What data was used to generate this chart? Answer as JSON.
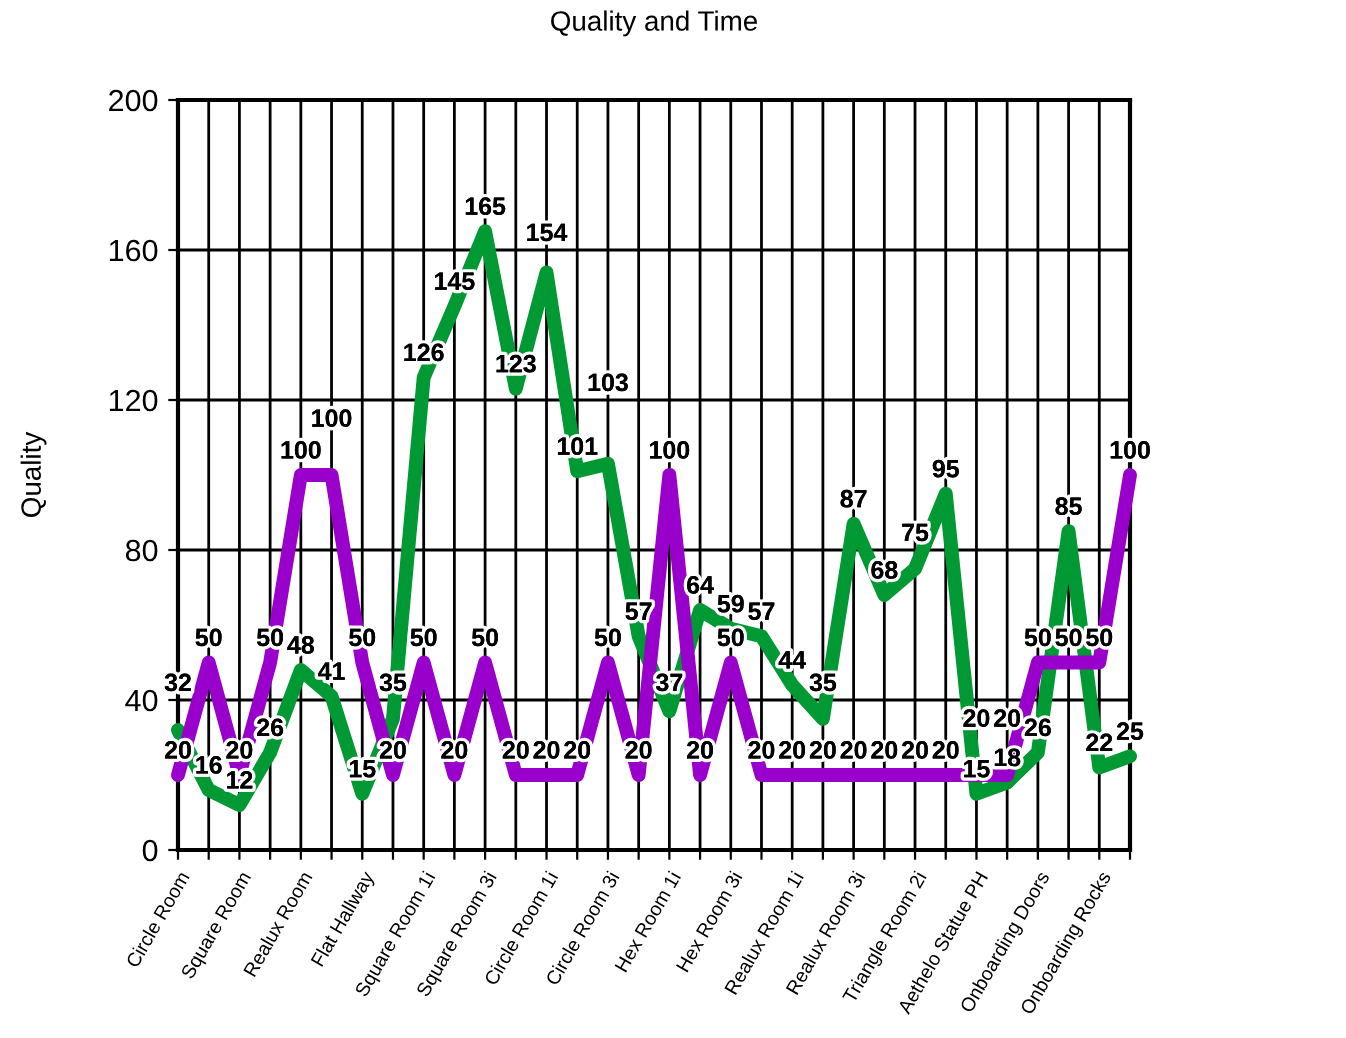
{
  "chart_data": {
    "type": "line",
    "title": "Quality and Time",
    "ylabel": "Quality",
    "categories": [
      "Circle Room",
      null,
      "Square Room",
      null,
      "Realux Room",
      null,
      "Flat Hallway",
      null,
      "Square Room 1i",
      null,
      "Square Room 3i",
      null,
      "Circle Room 1i",
      null,
      "Circle Room 3i",
      null,
      "Hex Room 1i",
      null,
      "Hex Room 3i",
      null,
      "Realux Room 1i",
      null,
      "Realux Room 3i",
      null,
      "Triangle Room 2i",
      null,
      "Aethelo Statue PH",
      null,
      "Onboarding Doors",
      null,
      "Onboarding Rocks",
      null
    ],
    "series": [
      {
        "color": "#009933",
        "values": [
          32,
          16,
          12,
          26,
          48,
          41,
          15,
          35,
          126,
          145,
          165,
          123,
          154,
          101,
          103,
          57,
          37,
          64,
          59,
          57,
          44,
          35,
          87,
          68,
          75,
          95,
          15,
          18,
          26,
          85,
          22,
          25
        ]
      },
      {
        "color": "#9900cc",
        "values": [
          20,
          50,
          20,
          50,
          100,
          100,
          50,
          20,
          50,
          20,
          50,
          20,
          20,
          20,
          50,
          20,
          100,
          20,
          50,
          20,
          20,
          20,
          20,
          20,
          20,
          20,
          20,
          20,
          50,
          50,
          50,
          100
        ]
      }
    ],
    "ylim": [
      0,
      200
    ],
    "yticks": [
      0,
      40,
      80,
      120,
      160,
      200
    ],
    "grid": true,
    "data_labels": true,
    "marker": "none",
    "line_style": "solid"
  }
}
